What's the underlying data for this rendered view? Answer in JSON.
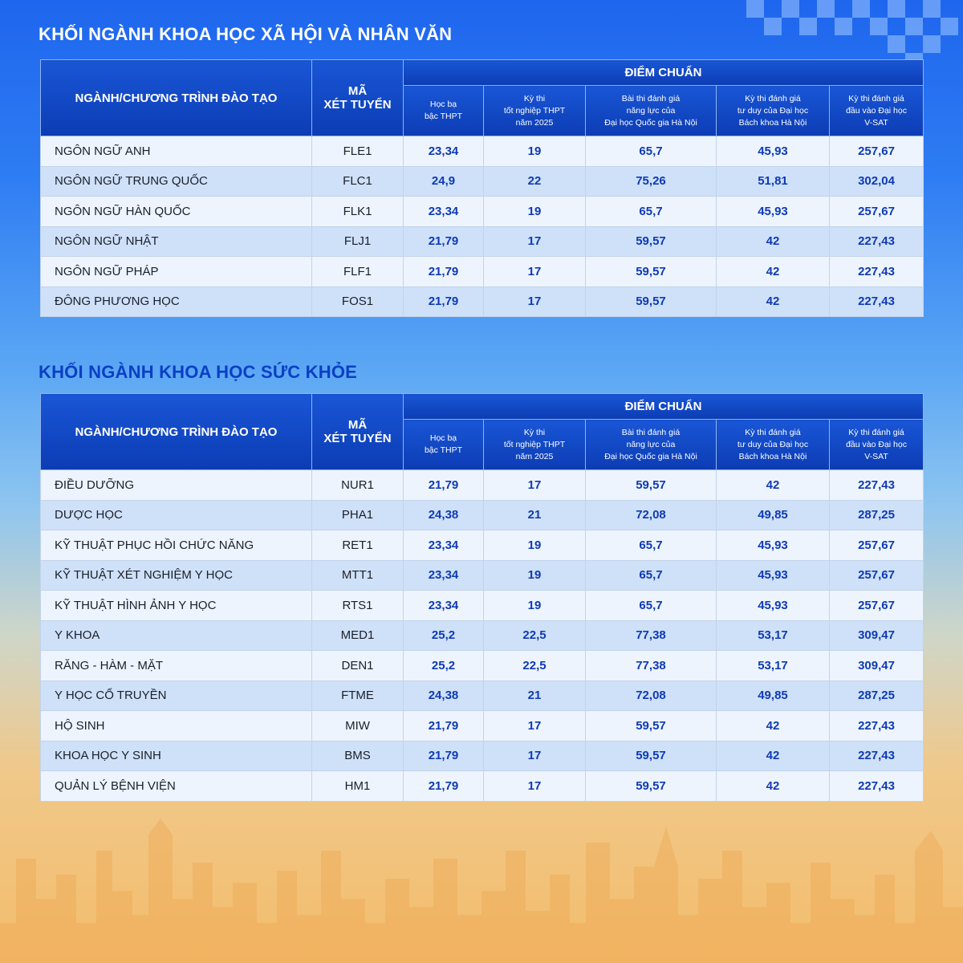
{
  "sections": [
    {
      "title": "KHỐI NGÀNH KHOA HỌC XÃ HỘI VÀ NHÂN VĂN",
      "header": {
        "program": "NGÀNH/CHƯƠNG TRÌNH ĐÀO TẠO",
        "code_line1": "MÃ",
        "code_line2": "XÉT TUYỂN",
        "group": "ĐIỂM CHUẨN",
        "cols": [
          [
            "Học bạ",
            "bậc THPT"
          ],
          [
            "Kỳ thi",
            "tốt nghiệp THPT",
            "năm 2025"
          ],
          [
            "Bài thi đánh giá",
            "năng lực của",
            "Đại học Quốc gia Hà Nội"
          ],
          [
            "Kỳ thi đánh giá",
            "tư duy của Đại học",
            "Bách khoa Hà Nội"
          ],
          [
            "Kỳ thi đánh giá",
            "đầu vào Đại học",
            "V-SAT"
          ]
        ]
      },
      "rows": [
        {
          "name": "NGÔN NGỮ ANH",
          "code": "FLE1",
          "scores": [
            "23,34",
            "19",
            "65,7",
            "45,93",
            "257,67"
          ]
        },
        {
          "name": "NGÔN NGỮ TRUNG QUỐC",
          "code": "FLC1",
          "scores": [
            "24,9",
            "22",
            "75,26",
            "51,81",
            "302,04"
          ]
        },
        {
          "name": "NGÔN NGỮ HÀN QUỐC",
          "code": "FLK1",
          "scores": [
            "23,34",
            "19",
            "65,7",
            "45,93",
            "257,67"
          ]
        },
        {
          "name": "NGÔN NGỮ NHẬT",
          "code": "FLJ1",
          "scores": [
            "21,79",
            "17",
            "59,57",
            "42",
            "227,43"
          ]
        },
        {
          "name": "NGÔN NGỮ PHÁP",
          "code": "FLF1",
          "scores": [
            "21,79",
            "17",
            "59,57",
            "42",
            "227,43"
          ]
        },
        {
          "name": "ĐÔNG PHƯƠNG HỌC",
          "code": "FOS1",
          "scores": [
            "21,79",
            "17",
            "59,57",
            "42",
            "227,43"
          ]
        }
      ]
    },
    {
      "title": "KHỐI NGÀNH KHOA HỌC SỨC KHỎE",
      "header": {
        "program": "NGÀNH/CHƯƠNG TRÌNH ĐÀO TẠO",
        "code_line1": "MÃ",
        "code_line2": "XÉT TUYỂN",
        "group": "ĐIỂM CHUẨN",
        "cols": [
          [
            "Học bạ",
            "bậc THPT"
          ],
          [
            "Kỳ thi",
            "tốt nghiệp THPT",
            "năm 2025"
          ],
          [
            "Bài thi đánh giá",
            "năng lực của",
            "Đại học Quốc gia Hà Nội"
          ],
          [
            "Kỳ thi đánh giá",
            "tư duy của Đại học",
            "Bách khoa Hà Nội"
          ],
          [
            "Kỳ thi đánh giá",
            "đầu vào Đại học",
            "V-SAT"
          ]
        ]
      },
      "rows": [
        {
          "name": "ĐIỀU DƯỠNG",
          "code": "NUR1",
          "scores": [
            "21,79",
            "17",
            "59,57",
            "42",
            "227,43"
          ]
        },
        {
          "name": "DƯỢC HỌC",
          "code": "PHA1",
          "scores": [
            "24,38",
            "21",
            "72,08",
            "49,85",
            "287,25"
          ]
        },
        {
          "name": "KỸ THUẬT PHỤC HỒI CHỨC NĂNG",
          "code": "RET1",
          "scores": [
            "23,34",
            "19",
            "65,7",
            "45,93",
            "257,67"
          ]
        },
        {
          "name": "KỸ THUẬT XÉT NGHIỆM Y HỌC",
          "code": "MTT1",
          "scores": [
            "23,34",
            "19",
            "65,7",
            "45,93",
            "257,67"
          ]
        },
        {
          "name": "KỸ THUẬT HÌNH ẢNH Y HỌC",
          "code": "RTS1",
          "scores": [
            "23,34",
            "19",
            "65,7",
            "45,93",
            "257,67"
          ]
        },
        {
          "name": "Y KHOA",
          "code": "MED1",
          "scores": [
            "25,2",
            "22,5",
            "77,38",
            "53,17",
            "309,47"
          ]
        },
        {
          "name": "RĂNG - HÀM - MẶT",
          "code": "DEN1",
          "scores": [
            "25,2",
            "22,5",
            "77,38",
            "53,17",
            "309,47"
          ]
        },
        {
          "name": "Y HỌC CỔ TRUYỀN",
          "code": "FTME",
          "scores": [
            "24,38",
            "21",
            "72,08",
            "49,85",
            "287,25"
          ]
        },
        {
          "name": "HỘ SINH",
          "code": "MIW",
          "scores": [
            "21,79",
            "17",
            "59,57",
            "42",
            "227,43"
          ]
        },
        {
          "name": "KHOA HỌC Y SINH",
          "code": "BMS",
          "scores": [
            "21,79",
            "17",
            "59,57",
            "42",
            "227,43"
          ]
        },
        {
          "name": "QUẢN LÝ BỆNH VIỆN",
          "code": "HM1",
          "scores": [
            "21,79",
            "17",
            "59,57",
            "42",
            "227,43"
          ]
        }
      ]
    }
  ]
}
